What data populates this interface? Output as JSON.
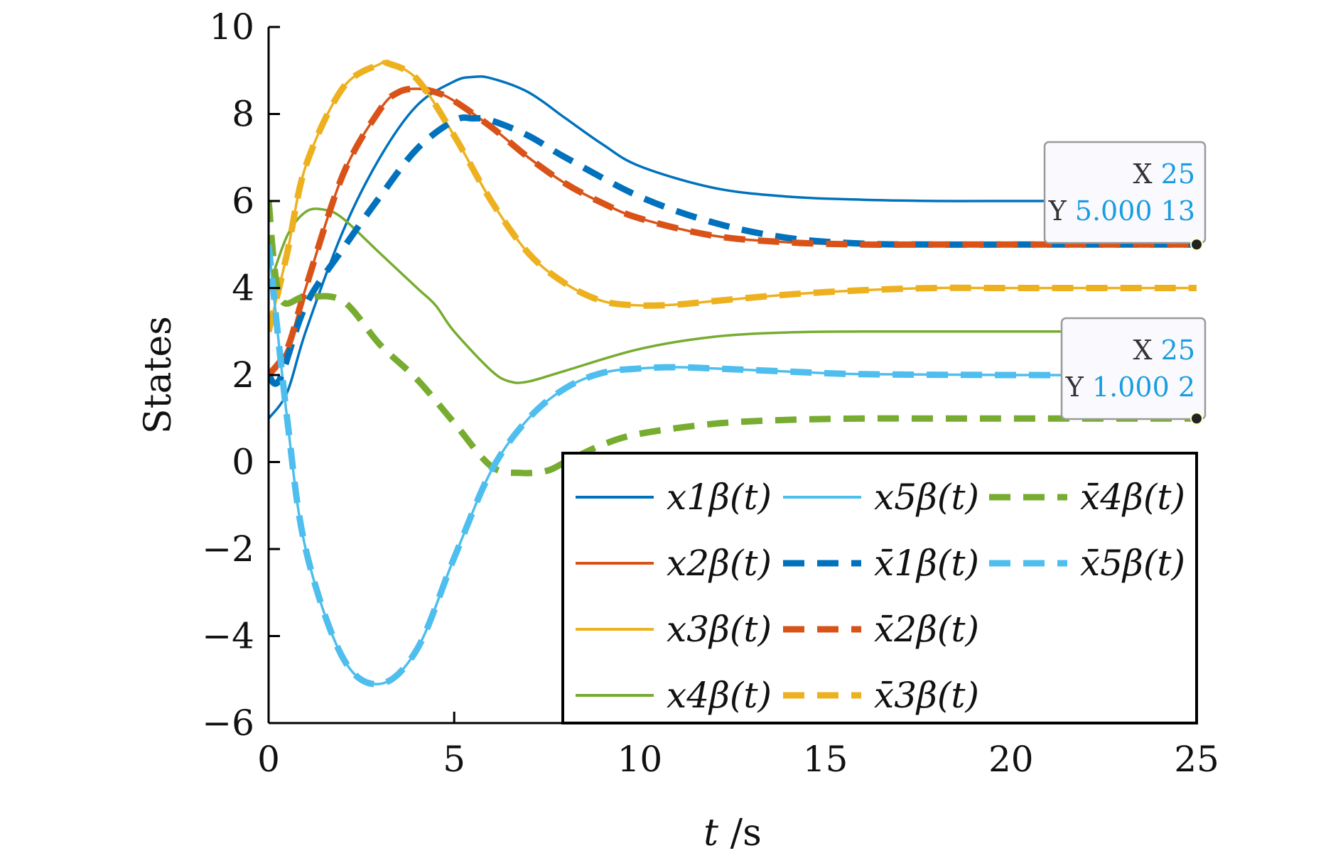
{
  "chart_data": {
    "type": "line",
    "title": "",
    "xlabel": "t /s",
    "ylabel": "States",
    "xlim": [
      0,
      25
    ],
    "ylim": [
      -6,
      10
    ],
    "xticks": [
      "0",
      "5",
      "10",
      "15",
      "20",
      "25"
    ],
    "yticks": [
      "−6",
      "−4",
      "−2",
      "0",
      "2",
      "4",
      "6",
      "8",
      "10"
    ],
    "grid": false,
    "legend_position": "bottom-right",
    "series": [
      {
        "name": "x1β(t)",
        "style": "solid",
        "color": "#0072BD",
        "x": [
          0,
          0.5,
          1,
          2,
          3,
          4,
          5,
          5.5,
          6,
          7,
          8,
          9,
          10,
          12,
          14,
          16,
          18,
          20,
          25
        ],
        "y": [
          1.0,
          1.6,
          3.0,
          5.3,
          7.0,
          8.2,
          8.75,
          8.85,
          8.82,
          8.5,
          7.9,
          7.3,
          6.8,
          6.3,
          6.1,
          6.03,
          6.0,
          6.0,
          6.0
        ]
      },
      {
        "name": "x2β(t)",
        "style": "solid",
        "color": "#D95319",
        "x": [
          0,
          0.5,
          1,
          2,
          3,
          3.5,
          4,
          4.5,
          5,
          6,
          7,
          8,
          9,
          10,
          12,
          14,
          16,
          18,
          25
        ],
        "y": [
          2.0,
          2.6,
          4.0,
          6.6,
          8.1,
          8.5,
          8.58,
          8.5,
          8.3,
          7.7,
          7.0,
          6.4,
          5.95,
          5.6,
          5.2,
          5.05,
          5.0,
          5.0,
          5.0
        ]
      },
      {
        "name": "x3β(t)",
        "style": "solid",
        "color": "#EDB120",
        "x": [
          0,
          0.5,
          1,
          2,
          3,
          3.2,
          4,
          5,
          6,
          7,
          8,
          9,
          10,
          11,
          12,
          14,
          16,
          18,
          20,
          25
        ],
        "y": [
          3.0,
          4.8,
          6.8,
          8.6,
          9.15,
          9.17,
          8.8,
          7.5,
          6.0,
          4.8,
          4.1,
          3.7,
          3.6,
          3.62,
          3.7,
          3.85,
          3.95,
          4.0,
          4.0,
          4.0
        ]
      },
      {
        "name": "x4β(t)",
        "style": "solid",
        "color": "#77AC30",
        "x": [
          0,
          0.5,
          1,
          1.5,
          2,
          3,
          4,
          4.5,
          5,
          6,
          6.5,
          7,
          8,
          10,
          12,
          14,
          16,
          18,
          20,
          25
        ],
        "y": [
          4.0,
          5.2,
          5.75,
          5.8,
          5.6,
          4.8,
          4.0,
          3.6,
          3.0,
          2.1,
          1.85,
          1.85,
          2.1,
          2.6,
          2.88,
          2.98,
          3.0,
          3.0,
          3.0,
          3.0
        ]
      },
      {
        "name": "x5β(t)",
        "style": "solid",
        "color": "#4DBEEE",
        "x": [
          0,
          0.5,
          1,
          2,
          3,
          4,
          5,
          6,
          7,
          8,
          9,
          10,
          11,
          12,
          14,
          16,
          20,
          25
        ],
        "y": [
          5.0,
          1.0,
          -2.0,
          -4.5,
          -5.1,
          -4.3,
          -2.2,
          -0.2,
          1.0,
          1.7,
          2.05,
          2.15,
          2.18,
          2.15,
          2.08,
          2.02,
          2.0,
          2.0
        ]
      },
      {
        "name": "x̄1β(t)",
        "style": "dashed",
        "color": "#0072BD",
        "x": [
          0,
          0.3,
          1,
          2,
          3,
          4,
          5,
          5.5,
          6,
          7,
          8,
          10,
          12,
          14,
          16,
          18,
          20,
          25
        ],
        "y": [
          2.0,
          1.9,
          3.6,
          4.9,
          6.1,
          7.2,
          7.85,
          7.9,
          7.85,
          7.5,
          7.0,
          6.1,
          5.5,
          5.15,
          5.02,
          5.0,
          5.0,
          5.0
        ]
      },
      {
        "name": "x̄2β(t)",
        "style": "dashed",
        "color": "#D95319",
        "x": [
          0,
          0.5,
          1,
          2,
          3,
          3.5,
          4,
          4.5,
          5,
          6,
          7,
          8,
          9,
          10,
          12,
          14,
          16,
          18,
          25
        ],
        "y": [
          2.0,
          2.6,
          4.0,
          6.6,
          8.1,
          8.5,
          8.58,
          8.5,
          8.3,
          7.7,
          7.0,
          6.4,
          5.95,
          5.6,
          5.2,
          5.05,
          5.0,
          5.0,
          5.0
        ]
      },
      {
        "name": "x̄3β(t)",
        "style": "dashed",
        "color": "#EDB120",
        "x": [
          0,
          0.5,
          1,
          2,
          3,
          3.2,
          4,
          5,
          6,
          7,
          8,
          9,
          10,
          11,
          12,
          14,
          16,
          18,
          20,
          25
        ],
        "y": [
          3.0,
          4.8,
          6.8,
          8.6,
          9.15,
          9.17,
          8.8,
          7.5,
          6.0,
          4.8,
          4.1,
          3.7,
          3.6,
          3.62,
          3.7,
          3.85,
          3.95,
          4.0,
          4.0,
          4.0
        ]
      },
      {
        "name": "x̄4β(t)",
        "style": "dashed",
        "color": "#77AC30",
        "x": [
          0,
          0.3,
          1,
          2,
          3,
          4,
          5,
          6,
          6.8,
          7.5,
          8,
          9,
          10,
          12,
          14,
          16,
          18,
          20,
          25
        ],
        "y": [
          6.0,
          3.8,
          3.8,
          3.7,
          2.7,
          1.9,
          0.9,
          -0.1,
          -0.25,
          -0.2,
          0.0,
          0.4,
          0.65,
          0.88,
          0.97,
          1.0,
          1.0,
          1.0,
          1.0
        ]
      },
      {
        "name": "x̄5β(t)",
        "style": "dashed",
        "color": "#4DBEEE",
        "x": [
          0,
          0.5,
          1,
          2,
          3,
          4,
          5,
          6,
          7,
          8,
          9,
          10,
          11,
          12,
          14,
          16,
          20,
          25
        ],
        "y": [
          5.0,
          1.0,
          -2.0,
          -4.5,
          -5.1,
          -4.3,
          -2.2,
          -0.2,
          1.0,
          1.7,
          2.05,
          2.15,
          2.18,
          2.15,
          2.08,
          2.02,
          2.0,
          2.0
        ]
      }
    ],
    "datatips": [
      {
        "x_key": "X",
        "x_value": "25",
        "y_key": "Y",
        "y_value": "5.000 13",
        "x": 25,
        "y": 5.00013
      },
      {
        "x_key": "X",
        "x_value": "25",
        "y_key": "Y",
        "y_value": "1.000 2",
        "x": 25,
        "y": 1.0002
      }
    ]
  }
}
